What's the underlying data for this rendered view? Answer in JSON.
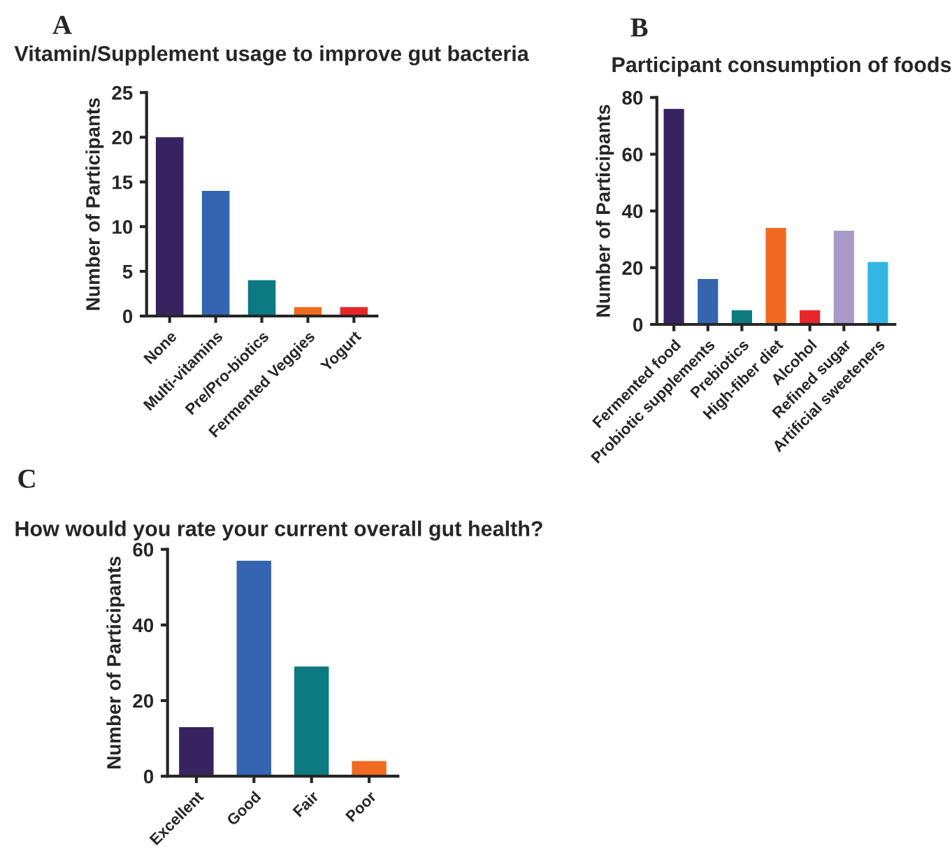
{
  "chart_data": [
    {
      "type": "bar",
      "title": "Vitamin/Supplement usage to improve gut bacteria",
      "ylabel": "Number of Participants",
      "annotations": [
        "A"
      ],
      "categories": [
        "None",
        "Multi-vitamins",
        "Pre/Pro-biotics",
        "Fermented Veggies",
        "Yogurt"
      ],
      "values": [
        20,
        14,
        4,
        1,
        1
      ],
      "colors": [
        "#36235f",
        "#3564b0",
        "#0c7a80",
        "#f26a21",
        "#e8262a"
      ],
      "ylim": [
        0,
        25
      ],
      "yticks": [
        0,
        5,
        10,
        15,
        20,
        25
      ],
      "grid": false,
      "legend": false
    },
    {
      "type": "bar",
      "title": "Participant consumption of foods",
      "ylabel": "Number of Participants",
      "annotations": [
        "B"
      ],
      "categories": [
        "Fermented food",
        "Probiotic supplements",
        "Prebiotics",
        "High-fiber diet",
        "Alcohol",
        "Refined sugar",
        "Artificial sweeteners"
      ],
      "values": [
        76,
        16,
        5,
        34,
        5,
        33,
        22
      ],
      "colors": [
        "#36235f",
        "#3564b0",
        "#0c7a80",
        "#f26a21",
        "#e8262a",
        "#a899c8",
        "#33b5e5"
      ],
      "ylim": [
        0,
        80
      ],
      "yticks": [
        0,
        20,
        40,
        60,
        80
      ],
      "grid": false,
      "legend": false
    },
    {
      "type": "bar",
      "title": "How would you rate your current overall gut health?",
      "ylabel": "Number of Participants",
      "annotations": [
        "C"
      ],
      "categories": [
        "Excellent",
        "Good",
        "Fair",
        "Poor"
      ],
      "values": [
        13,
        57,
        29,
        4
      ],
      "colors": [
        "#36235f",
        "#3564b0",
        "#0c7a80",
        "#f26a21"
      ],
      "ylim": [
        0,
        60
      ],
      "yticks": [
        0,
        20,
        40,
        60
      ],
      "grid": false,
      "legend": false
    }
  ]
}
